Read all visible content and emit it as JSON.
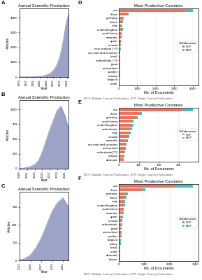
{
  "chart_data": [
    {
      "type": "area",
      "panel_label": "A",
      "title": "Annual Scientific Production",
      "x_label": "Year",
      "y_label": "Articles",
      "color": "#7b85b5",
      "x": [
        1993,
        1994,
        1995,
        1996,
        1997,
        1998,
        1999,
        2000,
        2001,
        2002,
        2003,
        2004,
        2005,
        2006,
        2007,
        2008,
        2009,
        2010,
        2011,
        2012,
        2013,
        2014,
        2015,
        2016,
        2017,
        2018,
        2019,
        2020,
        2021,
        2022
      ],
      "values": [
        2,
        3,
        4,
        5,
        6,
        7,
        8,
        10,
        12,
        15,
        20,
        28,
        38,
        52,
        70,
        95,
        130,
        175,
        240,
        320,
        430,
        580,
        780,
        1050,
        1420,
        1900,
        2500,
        3200,
        3800,
        4200
      ],
      "xlim": [
        1993,
        2022
      ],
      "xticks": [
        1993,
        1997,
        2001,
        2005,
        2009,
        2013,
        2017,
        2021
      ],
      "ylim": [
        0,
        4620
      ],
      "yticks": [
        0,
        1000,
        2000,
        3000,
        4000
      ],
      "grid": false
    },
    {
      "type": "area",
      "panel_label": "B",
      "title": "Annual Scientific Production",
      "x_label": "Year",
      "y_label": "Articles",
      "color": "#7b85b5",
      "x": [
        2009,
        2010,
        2011,
        2012,
        2013,
        2014,
        2015,
        2016,
        2017,
        2018,
        2019,
        2020,
        2021,
        2022
      ],
      "values": [
        5,
        8,
        18,
        35,
        70,
        130,
        270,
        460,
        650,
        820,
        980,
        1050,
        900,
        680
      ],
      "xlim": [
        2009,
        2022
      ],
      "xticks": [
        2009,
        2011,
        2013,
        2015,
        2017,
        2019,
        2021
      ],
      "ylim": [
        0,
        1155
      ],
      "yticks": [
        0,
        250,
        500,
        750,
        1000
      ],
      "grid": false
    },
    {
      "type": "area",
      "panel_label": "C",
      "title": "Annual Scientific Production",
      "x_label": "Year",
      "y_label": "Articles",
      "color": "#7b85b5",
      "x": [
        2013,
        2014,
        2015,
        2016,
        2017,
        2018,
        2019,
        2020,
        2021,
        2022
      ],
      "values": [
        5,
        20,
        60,
        140,
        250,
        400,
        550,
        650,
        700,
        600
      ],
      "xlim": [
        2013,
        2022
      ],
      "xticks": [
        2013,
        2015,
        2017,
        2019,
        2021
      ],
      "ylim": [
        0,
        770
      ],
      "yticks": [
        0,
        200,
        400,
        600
      ],
      "grid": false
    },
    {
      "type": "bar",
      "orientation": "horizontal",
      "stacked": true,
      "panel_label": "D",
      "title": "Most Productive Countries",
      "x_label": "No. of Documents",
      "categories": [
        "usa",
        "china",
        "germany",
        "france",
        "italy",
        "united kingdom",
        "south korea",
        "australia",
        "spain",
        "canada",
        "new zealand (??)",
        "not matched countries",
        "brazil",
        "netherlands (??)",
        "japan",
        "switzerland",
        "sweden",
        "norway",
        "belgium",
        "israel"
      ],
      "series": [
        {
          "name": "SCP",
          "color": "#e8735a",
          "values": [
            3600,
            450,
            220,
            180,
            160,
            150,
            130,
            110,
            100,
            90,
            85,
            80,
            75,
            70,
            65,
            60,
            55,
            50,
            45,
            40
          ]
        },
        {
          "name": "MCP",
          "color": "#3ec0c0",
          "values": [
            400,
            80,
            60,
            50,
            40,
            60,
            30,
            40,
            30,
            25,
            15,
            10,
            15,
            20,
            15,
            15,
            12,
            12,
            10,
            10
          ]
        }
      ],
      "xlim": [
        0,
        4320
      ],
      "xticks": [
        0,
        1000,
        2000,
        3000,
        4000
      ],
      "grid": true,
      "legend": "center right",
      "legend_title": "Collaboration",
      "annotations": [
        "MCP: Multiple Country Publications; SCP: Single Country Publications"
      ]
    },
    {
      "type": "bar",
      "orientation": "horizontal",
      "stacked": true,
      "panel_label": "E",
      "title": "Most Productive Countries",
      "x_label": "No. of Documents",
      "categories": [
        "usa",
        "china",
        "germany",
        "south korea",
        "united kingdom",
        "netherlands",
        "italy",
        "canada",
        "australia",
        "not matched countries",
        "switzerland",
        "netherlands(??)",
        "norway",
        "denmark"
      ],
      "series": [
        {
          "name": "SCP",
          "color": "#e8735a",
          "values": [
            320,
            100,
            80,
            65,
            60,
            55,
            50,
            45,
            40,
            35,
            30,
            28,
            25,
            22
          ]
        },
        {
          "name": "MCP",
          "color": "#3ec0c0",
          "values": [
            50,
            15,
            15,
            10,
            12,
            10,
            8,
            8,
            7,
            5,
            5,
            5,
            4,
            3
          ]
        }
      ],
      "xlim": [
        0,
        399.6
      ],
      "xticks": [
        0,
        100,
        200,
        300
      ],
      "grid": true,
      "legend": "center right",
      "legend_title": "Collaboration",
      "annotations": [
        "MCP: Multiple Country Publications; SCP: Single Country Publications"
      ]
    },
    {
      "type": "bar",
      "orientation": "horizontal",
      "stacked": true,
      "panel_label": "F",
      "title": "Most Productive Countries",
      "x_label": "No. of Documents",
      "categories": [
        "usa",
        "china",
        "germany",
        "france",
        "italy",
        "united kingdom",
        "south korea",
        "australia",
        "spain",
        "canada",
        "netherlands",
        "japan",
        "switzerland",
        "sweden",
        "belgium",
        "turkey",
        "brazil",
        "israel",
        "denmark",
        "taiwan"
      ],
      "series": [
        {
          "name": "SCP",
          "color": "#e8735a",
          "values": [
            2200,
            900,
            280,
            230,
            200,
            190,
            160,
            140,
            120,
            110,
            100,
            90,
            80,
            75,
            65,
            55,
            50,
            45,
            40,
            35
          ]
        },
        {
          "name": "MCP",
          "color": "#3ec0c0",
          "values": [
            700,
            150,
            70,
            60,
            45,
            65,
            35,
            45,
            35,
            28,
            35,
            25,
            28,
            22,
            22,
            18,
            14,
            18,
            13,
            12
          ]
        }
      ],
      "xlim": [
        0,
        3132
      ],
      "xticks": [
        0,
        1000,
        2000,
        3000
      ],
      "grid": true,
      "legend": "center right",
      "legend_title": "Collaboration",
      "annotations": [
        "MCP: Multiple Country Publications; SCP: Single Country Publications"
      ]
    }
  ]
}
